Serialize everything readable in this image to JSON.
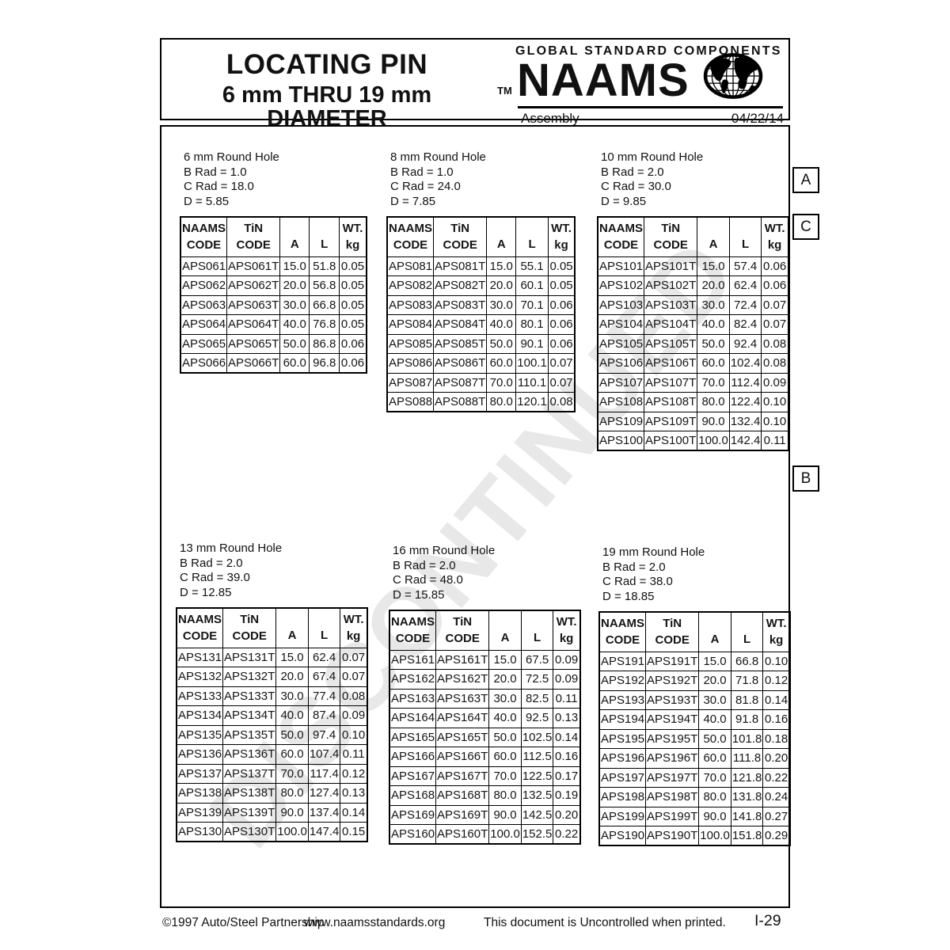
{
  "colors": {
    "ink": "#111111",
    "watermark_gray": "#e8e8e8"
  },
  "watermark": "DISCONTINUED",
  "header": {
    "title_line1": "LOCATING PIN",
    "title_line2": "6 mm THRU 19 mm DIAMETER",
    "brand_tagline": "GLOBAL STANDARD COMPONENTS",
    "trademark": "TM",
    "brand": "NAAMS",
    "category": "Assembly",
    "date": "04/22/14"
  },
  "side_labels": [
    "A",
    "C",
    "B"
  ],
  "table_headers": {
    "naams": "NAAMS",
    "code": "CODE",
    "tin": "TiN",
    "a": "A",
    "l": "L",
    "wt": "WT.",
    "kg": "kg"
  },
  "tables": [
    {
      "info": [
        "6 mm Round Hole",
        "B Rad = 1.0",
        "C Rad = 18.0",
        "D = 5.85"
      ],
      "rows": [
        [
          "APS061",
          "APS061T",
          "15.0",
          "51.8",
          "0.05"
        ],
        [
          "APS062",
          "APS062T",
          "20.0",
          "56.8",
          "0.05"
        ],
        [
          "APS063",
          "APS063T",
          "30.0",
          "66.8",
          "0.05"
        ],
        [
          "APS064",
          "APS064T",
          "40.0",
          "76.8",
          "0.05"
        ],
        [
          "APS065",
          "APS065T",
          "50.0",
          "86.8",
          "0.06"
        ],
        [
          "APS066",
          "APS066T",
          "60.0",
          "96.8",
          "0.06"
        ]
      ]
    },
    {
      "info": [
        "8 mm Round Hole",
        "B Rad = 1.0",
        "C Rad = 24.0",
        "D = 7.85"
      ],
      "rows": [
        [
          "APS081",
          "APS081T",
          "15.0",
          "55.1",
          "0.05"
        ],
        [
          "APS082",
          "APS082T",
          "20.0",
          "60.1",
          "0.05"
        ],
        [
          "APS083",
          "APS083T",
          "30.0",
          "70.1",
          "0.06"
        ],
        [
          "APS084",
          "APS084T",
          "40.0",
          "80.1",
          "0.06"
        ],
        [
          "APS085",
          "APS085T",
          "50.0",
          "90.1",
          "0.06"
        ],
        [
          "APS086",
          "APS086T",
          "60.0",
          "100.1",
          "0.07"
        ],
        [
          "APS087",
          "APS087T",
          "70.0",
          "110.1",
          "0.07"
        ],
        [
          "APS088",
          "APS088T",
          "80.0",
          "120.1",
          "0.08"
        ]
      ]
    },
    {
      "info": [
        "10 mm Round Hole",
        "B Rad = 2.0",
        "C Rad = 30.0",
        "D = 9.85"
      ],
      "rows": [
        [
          "APS101",
          "APS101T",
          "15.0",
          "57.4",
          "0.06"
        ],
        [
          "APS102",
          "APS102T",
          "20.0",
          "62.4",
          "0.06"
        ],
        [
          "APS103",
          "APS103T",
          "30.0",
          "72.4",
          "0.07"
        ],
        [
          "APS104",
          "APS104T",
          "40.0",
          "82.4",
          "0.07"
        ],
        [
          "APS105",
          "APS105T",
          "50.0",
          "92.4",
          "0.08"
        ],
        [
          "APS106",
          "APS106T",
          "60.0",
          "102.4",
          "0.08"
        ],
        [
          "APS107",
          "APS107T",
          "70.0",
          "112.4",
          "0.09"
        ],
        [
          "APS108",
          "APS108T",
          "80.0",
          "122.4",
          "0.10"
        ],
        [
          "APS109",
          "APS109T",
          "90.0",
          "132.4",
          "0.10"
        ],
        [
          "APS100",
          "APS100T",
          "100.0",
          "142.4",
          "0.11"
        ]
      ]
    },
    {
      "info": [
        "13 mm Round Hole",
        "B Rad = 2.0",
        "C Rad = 39.0",
        "D = 12.85"
      ],
      "rows": [
        [
          "APS131",
          "APS131T",
          "15.0",
          "62.4",
          "0.07"
        ],
        [
          "APS132",
          "APS132T",
          "20.0",
          "67.4",
          "0.07"
        ],
        [
          "APS133",
          "APS133T",
          "30.0",
          "77.4",
          "0.08"
        ],
        [
          "APS134",
          "APS134T",
          "40.0",
          "87.4",
          "0.09"
        ],
        [
          "APS135",
          "APS135T",
          "50.0",
          "97.4",
          "0.10"
        ],
        [
          "APS136",
          "APS136T",
          "60.0",
          "107.4",
          "0.11"
        ],
        [
          "APS137",
          "APS137T",
          "70.0",
          "117.4",
          "0.12"
        ],
        [
          "APS138",
          "APS138T",
          "80.0",
          "127.4",
          "0.13"
        ],
        [
          "APS139",
          "APS139T",
          "90.0",
          "137.4",
          "0.14"
        ],
        [
          "APS130",
          "APS130T",
          "100.0",
          "147.4",
          "0.15"
        ]
      ]
    },
    {
      "info": [
        "16 mm Round Hole",
        "B Rad = 2.0",
        "C Rad = 48.0",
        "D = 15.85"
      ],
      "rows": [
        [
          "APS161",
          "APS161T",
          "15.0",
          "67.5",
          "0.09"
        ],
        [
          "APS162",
          "APS162T",
          "20.0",
          "72.5",
          "0.09"
        ],
        [
          "APS163",
          "APS163T",
          "30.0",
          "82.5",
          "0.11"
        ],
        [
          "APS164",
          "APS164T",
          "40.0",
          "92.5",
          "0.13"
        ],
        [
          "APS165",
          "APS165T",
          "50.0",
          "102.5",
          "0.14"
        ],
        [
          "APS166",
          "APS166T",
          "60.0",
          "112.5",
          "0.16"
        ],
        [
          "APS167",
          "APS167T",
          "70.0",
          "122.5",
          "0.17"
        ],
        [
          "APS168",
          "APS168T",
          "80.0",
          "132.5",
          "0.19"
        ],
        [
          "APS169",
          "APS169T",
          "90.0",
          "142.5",
          "0.20"
        ],
        [
          "APS160",
          "APS160T",
          "100.0",
          "152.5",
          "0.22"
        ]
      ]
    },
    {
      "info": [
        "19 mm Round Hole",
        "B Rad = 2.0",
        "C Rad = 38.0",
        "D = 18.85"
      ],
      "rows": [
        [
          "APS191",
          "APS191T",
          "15.0",
          "66.8",
          "0.10"
        ],
        [
          "APS192",
          "APS192T",
          "20.0",
          "71.8",
          "0.12"
        ],
        [
          "APS193",
          "APS193T",
          "30.0",
          "81.8",
          "0.14"
        ],
        [
          "APS194",
          "APS194T",
          "40.0",
          "91.8",
          "0.16"
        ],
        [
          "APS195",
          "APS195T",
          "50.0",
          "101.8",
          "0.18"
        ],
        [
          "APS196",
          "APS196T",
          "60.0",
          "111.8",
          "0.20"
        ],
        [
          "APS197",
          "APS197T",
          "70.0",
          "121.8",
          "0.22"
        ],
        [
          "APS198",
          "APS198T",
          "80.0",
          "131.8",
          "0.24"
        ],
        [
          "APS199",
          "APS199T",
          "90.0",
          "141.8",
          "0.27"
        ],
        [
          "APS190",
          "APS190T",
          "100.0",
          "151.8",
          "0.29"
        ]
      ]
    }
  ],
  "footer": {
    "copyright": "©1997 Auto/Steel Partnership",
    "website": "www.naamsstandards.org",
    "notice": "This document is Uncontrolled when printed.",
    "page_number": "I-29"
  }
}
